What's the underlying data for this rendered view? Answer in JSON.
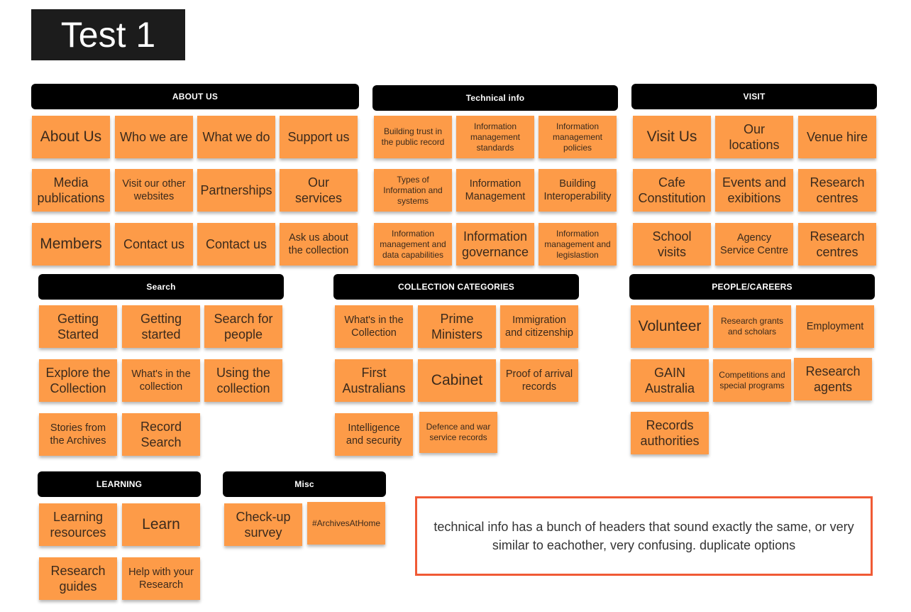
{
  "board": {
    "title": "Test 1"
  },
  "headers": {
    "about": "ABOUT US",
    "technical": "Technical info",
    "visit": "VISIT",
    "search": "Search",
    "collection": "COLLECTION CATEGORIES",
    "people": "PEOPLE/CAREERS",
    "learning": "LEARNING",
    "misc": "Misc"
  },
  "about": [
    "About Us",
    "Who we are",
    "What we do",
    "Support us",
    "Media publications",
    "Visit our other websites",
    "Partnerships",
    "Our services",
    "Members",
    "Contact us",
    "Contact us",
    "Ask us about the collection"
  ],
  "technical": [
    "Building trust in the public record",
    "Information management standards",
    "Information management policies",
    "Types of Information and systems",
    "Information Management",
    "Building Interoperability",
    "Information management and data capabilities",
    "Information governance",
    "Information management and legislastion"
  ],
  "visit": [
    "Visit Us",
    "Our locations",
    "Venue hire",
    "Cafe Constitution",
    "Events and exibitions",
    "Research centres",
    "School visits",
    "Agency Service Centre",
    "Research centres"
  ],
  "search": [
    "Getting Started",
    "Getting started",
    "Search for people",
    "Explore the Collection",
    "What's in the collection",
    "Using the collection",
    "Stories from the Archives",
    "Record Search"
  ],
  "collection": [
    "What's in the Collection",
    "Prime Ministers",
    "Immigration and citizenship",
    "First Australians",
    "Cabinet",
    "Proof of arrival records",
    "Intelligence and security",
    "Defence and war service records"
  ],
  "people": [
    "Volunteer",
    "Research grants and scholars",
    "Employment",
    "GAIN Australia",
    "Competitions and special programs",
    "Research agents",
    "Records authorities"
  ],
  "learning": [
    "Learning resources",
    "Learn",
    "Research guides",
    "Help with your Research"
  ],
  "misc": [
    "Check-up survey",
    "#ArchivesAtHome"
  ],
  "comment": "technical info has a bunch of headers that sound exactly the same, or very similar to eachother, very confusing. duplicate options",
  "colors": {
    "note": "#fd9b48",
    "header": "#000000",
    "comment_border": "#f05a35"
  }
}
